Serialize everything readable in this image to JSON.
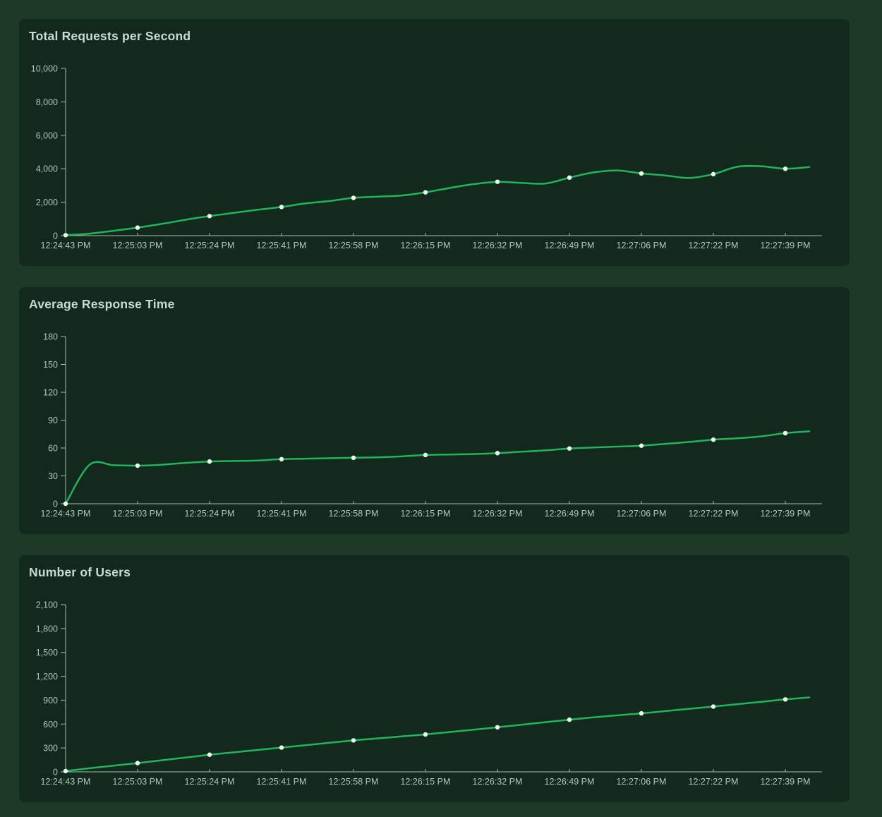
{
  "theme": {
    "page_background": "#1d3a29",
    "card_background": "#13291d",
    "title_color": "#c9dccf",
    "axis_label_color": "#b4c6b9",
    "axis_line_color": "#a9bcae",
    "line_color": "#21b55a",
    "marker_color": "#eaf8ee"
  },
  "chart_data": [
    {
      "type": "line",
      "title": "Total Requests per Second",
      "x_labels": [
        "12:24:43 PM",
        "12:25:03 PM",
        "12:25:24 PM",
        "12:25:41 PM",
        "12:25:58 PM",
        "12:26:15 PM",
        "12:26:32 PM",
        "12:26:49 PM",
        "12:27:06 PM",
        "12:27:22 PM",
        "12:27:39 PM"
      ],
      "label_every": 3,
      "values": [
        30,
        120,
        290,
        480,
        700,
        950,
        1170,
        1360,
        1550,
        1715,
        1930,
        2070,
        2260,
        2330,
        2400,
        2590,
        2850,
        3080,
        3220,
        3150,
        3120,
        3470,
        3780,
        3900,
        3720,
        3600,
        3450,
        3680,
        4120,
        4150,
        4000,
        4100
      ],
      "ylim": [
        0,
        10000
      ],
      "y_ticks": [
        0,
        2000,
        4000,
        6000,
        8000,
        10000
      ],
      "y_tick_labels": [
        "0",
        "2,000",
        "4,000",
        "6,000",
        "8,000",
        "10,000"
      ],
      "grid": false,
      "legend": false
    },
    {
      "type": "line",
      "title": "Average Response Time",
      "x_labels": [
        "12:24:43 PM",
        "12:25:03 PM",
        "12:25:24 PM",
        "12:25:41 PM",
        "12:25:58 PM",
        "12:26:15 PM",
        "12:26:32 PM",
        "12:26:49 PM",
        "12:27:06 PM",
        "12:27:22 PM",
        "12:27:39 PM"
      ],
      "label_every": 3,
      "values": [
        0,
        42,
        41.5,
        41,
        42,
        44,
        45.5,
        46,
        46.5,
        48,
        48.5,
        49,
        49.5,
        50,
        51,
        52.5,
        53,
        53.5,
        54.5,
        56,
        57.5,
        59.5,
        60.5,
        61.5,
        62.5,
        64.5,
        66.5,
        69,
        70.5,
        72.5,
        76,
        78
      ],
      "ylim": [
        0,
        180
      ],
      "y_ticks": [
        0,
        30,
        60,
        90,
        120,
        150,
        180
      ],
      "y_tick_labels": [
        "0",
        "30",
        "60",
        "90",
        "120",
        "150",
        "180"
      ],
      "grid": false,
      "legend": false
    },
    {
      "type": "line",
      "title": "Number of Users",
      "x_labels": [
        "12:24:43 PM",
        "12:25:03 PM",
        "12:25:24 PM",
        "12:25:41 PM",
        "12:25:58 PM",
        "12:26:15 PM",
        "12:26:32 PM",
        "12:26:49 PM",
        "12:27:06 PM",
        "12:27:22 PM",
        "12:27:39 PM"
      ],
      "label_every": 3,
      "values": [
        10,
        45,
        78,
        110,
        145,
        180,
        215,
        245,
        275,
        305,
        335,
        365,
        395,
        420,
        445,
        470,
        500,
        530,
        560,
        592,
        624,
        655,
        685,
        710,
        735,
        763,
        792,
        820,
        850,
        880,
        910,
        935
      ],
      "ylim": [
        0,
        2100
      ],
      "y_ticks": [
        0,
        300,
        600,
        900,
        1200,
        1500,
        1800,
        2100
      ],
      "y_tick_labels": [
        "0",
        "300",
        "600",
        "900",
        "1,200",
        "1,500",
        "1,800",
        "2,100"
      ],
      "grid": false,
      "legend": false
    }
  ]
}
